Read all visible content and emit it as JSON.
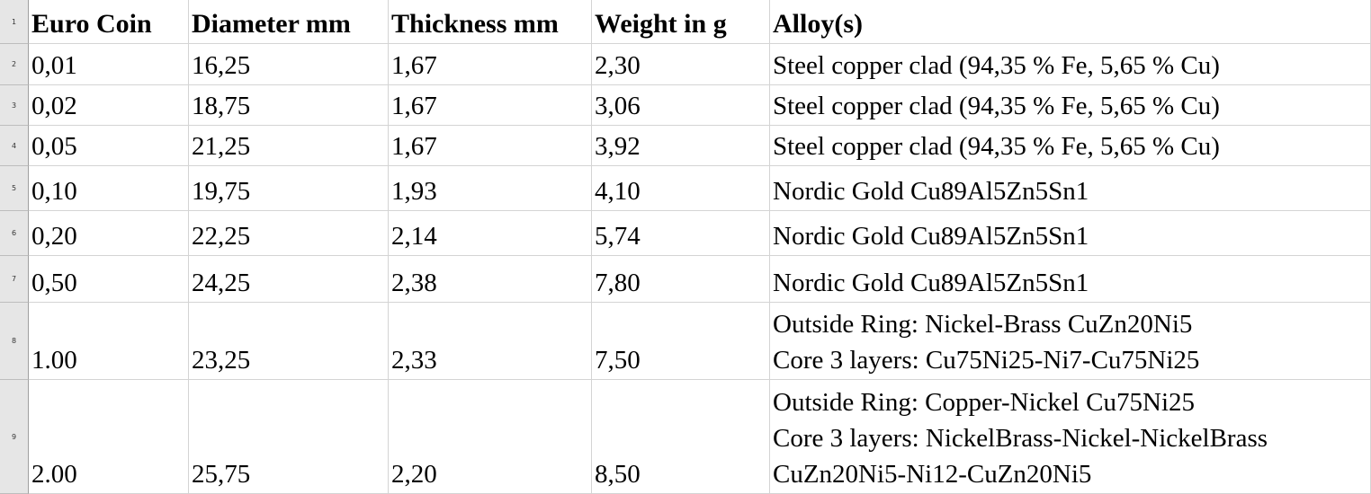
{
  "table": {
    "row_numbers": [
      "1",
      "2",
      "3",
      "4",
      "5",
      "6",
      "7",
      "8",
      "9"
    ],
    "header": [
      "Euro Coin",
      "Diameter mm",
      "Thickness mm",
      "Weight in g",
      "Alloy(s)"
    ],
    "rows": [
      [
        "0,01",
        "16,25",
        "1,67",
        "2,30",
        [
          "Steel copper clad (94,35 % Fe, 5,65 % Cu)"
        ]
      ],
      [
        "0,02",
        "18,75",
        "1,67",
        "3,06",
        [
          "Steel copper clad (94,35 % Fe, 5,65 % Cu)"
        ]
      ],
      [
        "0,05",
        "21,25",
        "1,67",
        "3,92",
        [
          "Steel copper clad (94,35 % Fe, 5,65 % Cu)"
        ]
      ],
      [
        "0,10",
        "19,75",
        "1,93",
        "4,10",
        [
          "Nordic Gold Cu89Al5Zn5Sn1"
        ]
      ],
      [
        "0,20",
        "22,25",
        "2,14",
        "5,74",
        [
          "Nordic Gold Cu89Al5Zn5Sn1"
        ]
      ],
      [
        "0,50",
        "24,25",
        "2,38",
        "7,80",
        [
          "Nordic Gold Cu89Al5Zn5Sn1"
        ]
      ],
      [
        "1.00",
        "23,25",
        "2,33",
        "7,50",
        [
          "Outside Ring: Nickel-Brass CuZn20Ni5",
          "Core 3 layers: Cu75Ni25-Ni7-Cu75Ni25"
        ]
      ],
      [
        "2.00",
        "25,75",
        "2,20",
        "8,50",
        [
          "Outside Ring: Copper-Nickel Cu75Ni25",
          "Core 3 layers: NickelBrass-Nickel-NickelBrass",
          "CuZn20Ni5-Ni12-CuZn20Ni5"
        ]
      ]
    ]
  }
}
